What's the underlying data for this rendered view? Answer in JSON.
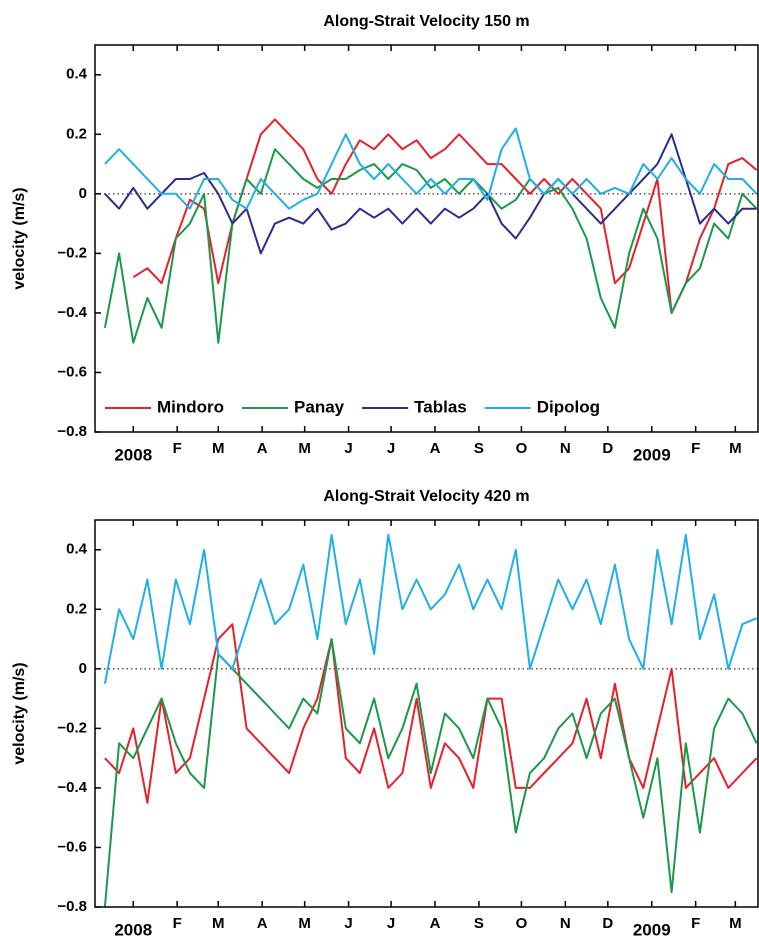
{
  "chart_data": [
    {
      "type": "line",
      "title": "Along-Strait Velocity 150 m",
      "ylabel": "velocity (m/s)",
      "x": [
        -20,
        -10,
        0,
        10,
        20,
        30,
        40,
        50,
        60,
        70,
        80,
        90,
        100,
        110,
        120,
        130,
        140,
        150,
        160,
        170,
        180,
        190,
        200,
        210,
        220,
        230,
        240,
        250,
        260,
        270,
        280,
        290,
        300,
        310,
        320,
        330,
        340,
        350,
        360,
        370,
        380,
        390,
        400,
        410,
        420,
        430,
        440
      ],
      "xlim": [
        -27,
        441
      ],
      "xticks": [
        {
          "value": 0,
          "label": "2008"
        },
        {
          "value": 31,
          "label": "F"
        },
        {
          "value": 60,
          "label": "M"
        },
        {
          "value": 91,
          "label": "A"
        },
        {
          "value": 121,
          "label": "M"
        },
        {
          "value": 152,
          "label": "J"
        },
        {
          "value": 182,
          "label": "J"
        },
        {
          "value": 213,
          "label": "A"
        },
        {
          "value": 244,
          "label": "S"
        },
        {
          "value": 274,
          "label": "O"
        },
        {
          "value": 305,
          "label": "N"
        },
        {
          "value": 335,
          "label": "D"
        },
        {
          "value": 366,
          "label": "2009"
        },
        {
          "value": 397,
          "label": "F"
        },
        {
          "value": 425,
          "label": "M"
        }
      ],
      "ylim": [
        -0.8,
        0.5
      ],
      "yticks": [
        {
          "value": -0.8,
          "label": "−0.8"
        },
        {
          "value": -0.6,
          "label": "−0.6"
        },
        {
          "value": -0.4,
          "label": "−0.4"
        },
        {
          "value": -0.2,
          "label": "−0.2"
        },
        0,
        0.2,
        0.4
      ],
      "legend": "lower left",
      "series": [
        {
          "name": "Mindoro",
          "color": "#e8202a",
          "values": [
            null,
            null,
            -0.28,
            -0.25,
            -0.3,
            -0.15,
            -0.02,
            -0.05,
            -0.3,
            -0.1,
            0.05,
            0.2,
            0.25,
            0.2,
            0.15,
            0.05,
            0.0,
            0.1,
            0.18,
            0.15,
            0.2,
            0.15,
            0.18,
            0.12,
            0.15,
            0.2,
            0.15,
            0.1,
            0.1,
            0.05,
            0.0,
            0.05,
            0.0,
            0.05,
            0.0,
            -0.05,
            -0.3,
            -0.25,
            -0.1,
            0.05,
            -0.4,
            -0.3,
            -0.15,
            -0.05,
            0.1,
            0.12,
            0.08
          ]
        },
        {
          "name": "Panay",
          "color": "#1a9a48",
          "values": [
            -0.45,
            -0.2,
            -0.5,
            -0.35,
            -0.45,
            -0.15,
            -0.1,
            0.0,
            -0.5,
            -0.1,
            0.05,
            0.0,
            0.15,
            0.1,
            0.05,
            0.02,
            0.05,
            0.05,
            0.08,
            0.1,
            0.05,
            0.1,
            0.08,
            0.02,
            0.05,
            0.0,
            0.05,
            0.0,
            -0.05,
            -0.02,
            0.05,
            0.0,
            0.02,
            -0.05,
            -0.15,
            -0.35,
            -0.45,
            -0.2,
            -0.05,
            -0.15,
            -0.4,
            -0.3,
            -0.25,
            -0.1,
            -0.15,
            0.0,
            -0.05
          ]
        },
        {
          "name": "Tablas",
          "color": "#2b2d8c",
          "values": [
            0.0,
            -0.05,
            0.02,
            -0.05,
            0.0,
            0.05,
            0.05,
            0.07,
            0.0,
            -0.1,
            -0.05,
            -0.2,
            -0.1,
            -0.08,
            -0.1,
            -0.05,
            -0.12,
            -0.1,
            -0.05,
            -0.08,
            -0.05,
            -0.1,
            -0.05,
            -0.1,
            -0.05,
            -0.08,
            -0.05,
            0.0,
            -0.1,
            -0.15,
            -0.08,
            0.0,
            0.05,
            0.0,
            -0.05,
            -0.1,
            -0.05,
            0.0,
            0.05,
            0.1,
            0.2,
            0.05,
            -0.1,
            -0.05,
            -0.1,
            -0.05,
            -0.05
          ]
        },
        {
          "name": "Dipolog",
          "color": "#1eb0e6",
          "values": [
            0.1,
            0.15,
            0.1,
            0.05,
            0.0,
            0.0,
            -0.05,
            0.05,
            0.05,
            -0.02,
            -0.05,
            0.05,
            0.0,
            -0.05,
            -0.02,
            0.0,
            0.1,
            0.2,
            0.1,
            0.05,
            0.1,
            0.05,
            0.0,
            0.05,
            0.0,
            0.05,
            0.05,
            -0.02,
            0.15,
            0.22,
            0.05,
            0.0,
            0.05,
            0.0,
            0.05,
            0.0,
            0.02,
            0.0,
            0.1,
            0.05,
            0.12,
            0.05,
            0.0,
            0.1,
            0.05,
            0.05,
            0.0
          ]
        }
      ]
    },
    {
      "type": "line",
      "title": "Along-Strait Velocity 420 m",
      "ylabel": "velocity (m/s)",
      "x": [
        -20,
        -10,
        0,
        10,
        20,
        30,
        40,
        50,
        60,
        70,
        80,
        90,
        100,
        110,
        120,
        130,
        140,
        150,
        160,
        170,
        180,
        190,
        200,
        210,
        220,
        230,
        240,
        250,
        260,
        270,
        280,
        290,
        300,
        310,
        320,
        330,
        340,
        350,
        360,
        370,
        380,
        390,
        400,
        410,
        420,
        430,
        440
      ],
      "xlim": [
        -27,
        441
      ],
      "xticks": [
        {
          "value": 0,
          "label": "2008"
        },
        {
          "value": 31,
          "label": "F"
        },
        {
          "value": 60,
          "label": "M"
        },
        {
          "value": 91,
          "label": "A"
        },
        {
          "value": 121,
          "label": "M"
        },
        {
          "value": 152,
          "label": "J"
        },
        {
          "value": 182,
          "label": "J"
        },
        {
          "value": 213,
          "label": "A"
        },
        {
          "value": 244,
          "label": "S"
        },
        {
          "value": 274,
          "label": "O"
        },
        {
          "value": 305,
          "label": "N"
        },
        {
          "value": 335,
          "label": "D"
        },
        {
          "value": 366,
          "label": "2009"
        },
        {
          "value": 397,
          "label": "F"
        },
        {
          "value": 425,
          "label": "M"
        }
      ],
      "ylim": [
        -0.8,
        0.5
      ],
      "yticks": [
        {
          "value": -0.8,
          "label": "−0.8"
        },
        {
          "value": -0.6,
          "label": "−0.6"
        },
        {
          "value": -0.4,
          "label": "−0.4"
        },
        {
          "value": -0.2,
          "label": "−0.2"
        },
        0,
        0.2,
        0.4
      ],
      "series": [
        {
          "color": "#e8202a",
          "values": [
            -0.3,
            -0.35,
            -0.2,
            -0.45,
            -0.1,
            -0.35,
            -0.3,
            -0.1,
            0.1,
            0.15,
            -0.2,
            -0.25,
            -0.3,
            -0.35,
            -0.2,
            -0.1,
            0.1,
            -0.3,
            -0.35,
            -0.2,
            -0.4,
            -0.35,
            -0.1,
            -0.4,
            -0.25,
            -0.3,
            -0.4,
            -0.1,
            -0.1,
            -0.4,
            -0.4,
            -0.35,
            -0.3,
            -0.25,
            -0.1,
            -0.3,
            -0.05,
            -0.3,
            -0.4,
            -0.2,
            0.0,
            -0.4,
            -0.35,
            -0.3,
            -0.4,
            -0.35,
            -0.3
          ]
        },
        {
          "color": "#1a9a48",
          "values": [
            -0.8,
            -0.25,
            -0.3,
            -0.2,
            -0.1,
            -0.25,
            -0.35,
            -0.4,
            0.05,
            0.0,
            -0.05,
            -0.1,
            -0.15,
            -0.2,
            -0.1,
            -0.15,
            0.1,
            -0.2,
            -0.25,
            -0.1,
            -0.3,
            -0.2,
            -0.05,
            -0.35,
            -0.15,
            -0.2,
            -0.3,
            -0.1,
            -0.2,
            -0.55,
            -0.35,
            -0.3,
            -0.2,
            -0.15,
            -0.3,
            -0.15,
            -0.1,
            -0.3,
            -0.5,
            -0.3,
            -0.75,
            -0.25,
            -0.55,
            -0.2,
            -0.1,
            -0.15,
            -0.25
          ]
        },
        {
          "color": "#1eb0e6",
          "values": [
            -0.05,
            0.2,
            0.1,
            0.3,
            0.0,
            0.3,
            0.15,
            0.4,
            0.05,
            0.0,
            0.15,
            0.3,
            0.15,
            0.2,
            0.35,
            0.1,
            0.45,
            0.15,
            0.3,
            0.05,
            0.45,
            0.2,
            0.3,
            0.2,
            0.25,
            0.35,
            0.2,
            0.3,
            0.2,
            0.4,
            0.0,
            0.15,
            0.3,
            0.2,
            0.3,
            0.15,
            0.35,
            0.1,
            0.0,
            0.4,
            0.15,
            0.45,
            0.1,
            0.25,
            0.0,
            0.15,
            0.17
          ]
        }
      ]
    }
  ]
}
